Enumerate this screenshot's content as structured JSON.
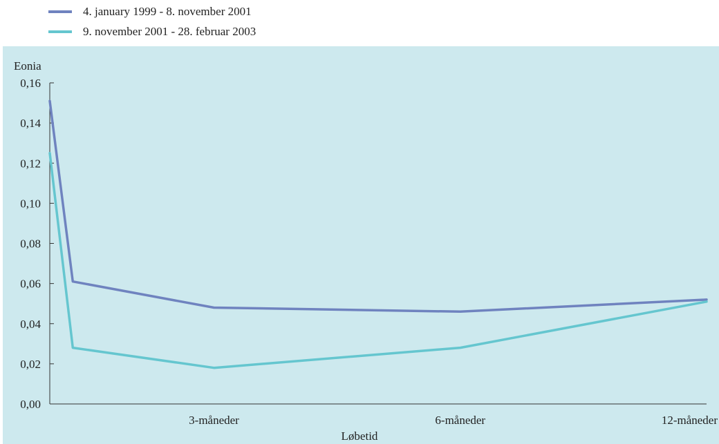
{
  "colors": {
    "plot_background": "#cde9ee",
    "axis": "#333333",
    "series_1": "#6f83bf",
    "series_2": "#65c6cf"
  },
  "chart_data": {
    "type": "line",
    "x": [
      0,
      1,
      2,
      3,
      4
    ],
    "xlim": [
      0,
      4
    ],
    "x_ticks": [
      {
        "x": 1,
        "label": "3-måneder"
      },
      {
        "x": 2.5,
        "label": "6-måneder"
      },
      {
        "x": 4,
        "label": "12-måneder"
      }
    ],
    "xlabel": "Løbetid",
    "ylabel": "Eonia",
    "ylim": [
      0,
      0.16
    ],
    "y_ticks": [
      {
        "value": 0.0,
        "label": "0,00"
      },
      {
        "value": 0.02,
        "label": "0,02"
      },
      {
        "value": 0.04,
        "label": "0,04"
      },
      {
        "value": 0.06,
        "label": "0,06"
      },
      {
        "value": 0.08,
        "label": "0,08"
      },
      {
        "value": 0.1,
        "label": "0,10"
      },
      {
        "value": 0.12,
        "label": "0,12"
      },
      {
        "value": 0.14,
        "label": "0,14"
      },
      {
        "value": 0.16,
        "label": "0,16"
      }
    ],
    "legend_position": "top-left, outside plot",
    "grid": false,
    "series": [
      {
        "name": "4. january 1999 - 8. november 2001",
        "x": [
          0,
          0.14,
          1,
          2.5,
          4
        ],
        "values": [
          0.151,
          0.061,
          0.048,
          0.046,
          0.052
        ]
      },
      {
        "name": "9. november 2001 - 28. februar 2003",
        "x": [
          0,
          0.14,
          1,
          2.5,
          4
        ],
        "values": [
          0.125,
          0.028,
          0.018,
          0.028,
          0.051
        ]
      }
    ]
  }
}
